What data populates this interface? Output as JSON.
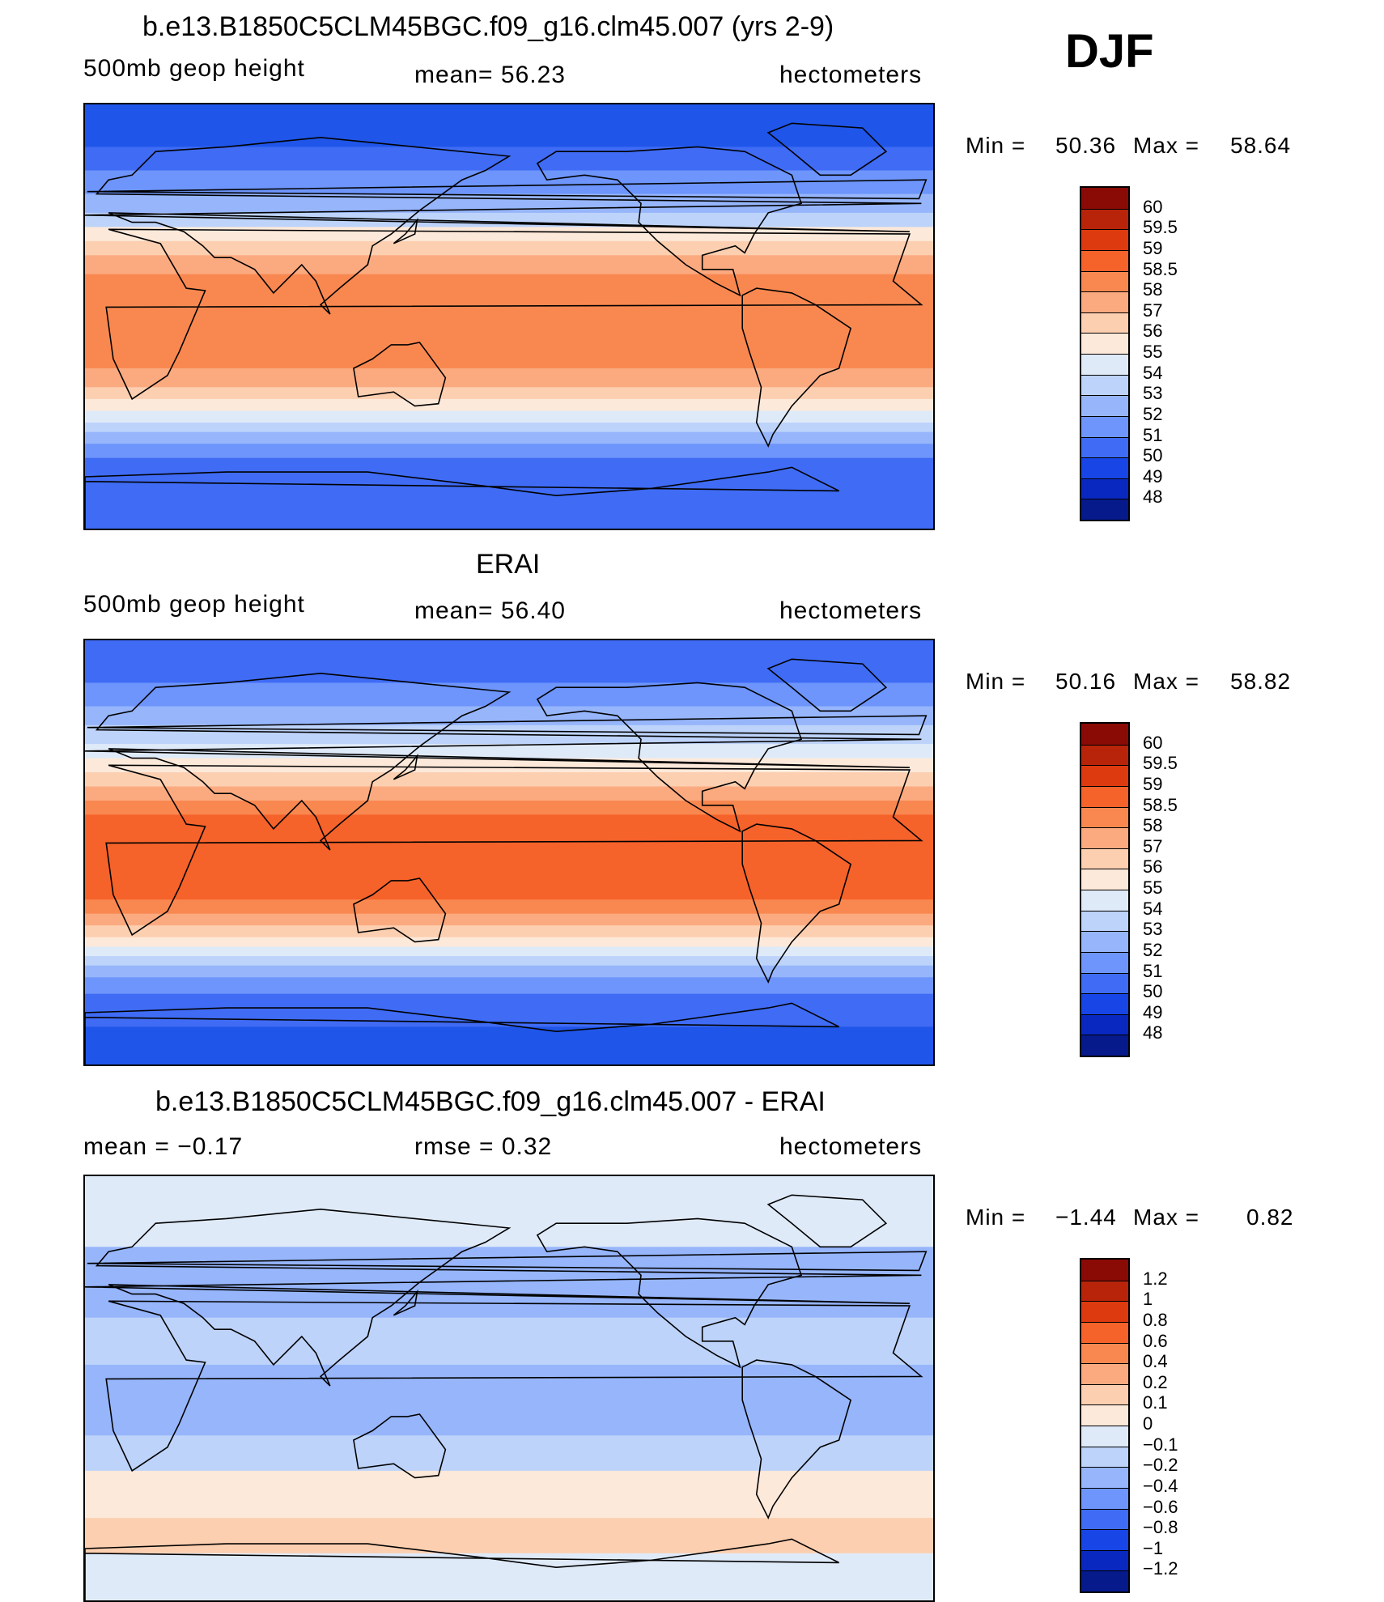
{
  "season": "DJF",
  "chart_data": [
    {
      "type": "heatmap",
      "title": "b.e13.B1850C5CLM45BGC.f09_g16.clm45.007 (yrs 2-9)",
      "left_label": "500mb geop height",
      "mean_text": "mean=  56.23",
      "units": "hectometers",
      "min_label": "Min =",
      "min_value": "50.36",
      "max_label": "Max =",
      "max_value": "58.64",
      "colorbar_levels": [
        "60",
        "59.5",
        "59",
        "58.5",
        "58",
        "57",
        "56",
        "55",
        "54",
        "53",
        "52",
        "51",
        "50",
        "49",
        "48"
      ],
      "colorbar_colors": [
        "#8a0a06",
        "#b8240a",
        "#de3a0f",
        "#f5622a",
        "#f98850",
        "#fbaa80",
        "#fccfb0",
        "#fde9da",
        "#dfeaf9",
        "#bdd3fa",
        "#96b5fb",
        "#6d95fb",
        "#3f6bf5",
        "#1745e6",
        "#0828c0",
        "#061a8c"
      ],
      "bands": [
        {
          "lat": 90,
          "color": "#1f55e8"
        },
        {
          "lat": 72,
          "color": "#3f6bf5"
        },
        {
          "lat": 62,
          "color": "#6d95fb"
        },
        {
          "lat": 52,
          "color": "#96b5fb"
        },
        {
          "lat": 44,
          "color": "#bdd3fa"
        },
        {
          "lat": 38,
          "color": "#fde9da"
        },
        {
          "lat": 32,
          "color": "#fccfb0"
        },
        {
          "lat": 26,
          "color": "#fbaa80"
        },
        {
          "lat": 18,
          "color": "#f98850"
        },
        {
          "lat": -22,
          "color": "#fbaa80"
        },
        {
          "lat": -30,
          "color": "#fccfb0"
        },
        {
          "lat": -35,
          "color": "#fde9da"
        },
        {
          "lat": -40,
          "color": "#dfeaf9"
        },
        {
          "lat": -45,
          "color": "#bdd3fa"
        },
        {
          "lat": -49,
          "color": "#96b5fb"
        },
        {
          "lat": -54,
          "color": "#6d95fb"
        },
        {
          "lat": -60,
          "color": "#3f6bf5"
        }
      ]
    },
    {
      "type": "heatmap",
      "title": "ERAI",
      "left_label": "500mb geop height",
      "mean_text": "mean=  56.40",
      "units": "hectometers",
      "min_label": "Min =",
      "min_value": "50.16",
      "max_label": "Max =",
      "max_value": "58.82",
      "colorbar_levels": [
        "60",
        "59.5",
        "59",
        "58.5",
        "58",
        "57",
        "56",
        "55",
        "54",
        "53",
        "52",
        "51",
        "50",
        "49",
        "48"
      ],
      "colorbar_colors": [
        "#8a0a06",
        "#b8240a",
        "#de3a0f",
        "#f5622a",
        "#f98850",
        "#fbaa80",
        "#fccfb0",
        "#fde9da",
        "#dfeaf9",
        "#bdd3fa",
        "#96b5fb",
        "#6d95fb",
        "#3f6bf5",
        "#1745e6",
        "#0828c0",
        "#061a8c"
      ],
      "bands": [
        {
          "lat": 90,
          "color": "#3f6bf5"
        },
        {
          "lat": 72,
          "color": "#6d95fb"
        },
        {
          "lat": 62,
          "color": "#96b5fb"
        },
        {
          "lat": 54,
          "color": "#bdd3fa"
        },
        {
          "lat": 46,
          "color": "#dfeaf9"
        },
        {
          "lat": 40,
          "color": "#fde9da"
        },
        {
          "lat": 34,
          "color": "#fccfb0"
        },
        {
          "lat": 28,
          "color": "#fbaa80"
        },
        {
          "lat": 22,
          "color": "#f98850"
        },
        {
          "lat": 16,
          "color": "#f5622a"
        },
        {
          "lat": -20,
          "color": "#f98850"
        },
        {
          "lat": -26,
          "color": "#fbaa80"
        },
        {
          "lat": -31,
          "color": "#fccfb0"
        },
        {
          "lat": -36,
          "color": "#fde9da"
        },
        {
          "lat": -40,
          "color": "#dfeaf9"
        },
        {
          "lat": -44,
          "color": "#bdd3fa"
        },
        {
          "lat": -48,
          "color": "#96b5fb"
        },
        {
          "lat": -53,
          "color": "#6d95fb"
        },
        {
          "lat": -60,
          "color": "#3f6bf5"
        },
        {
          "lat": -74,
          "color": "#1f55e8"
        }
      ]
    },
    {
      "type": "heatmap",
      "title": "b.e13.B1850C5CLM45BGC.f09_g16.clm45.007 - ERAI",
      "left_label": "mean =   −0.17",
      "mean_text": "rmse =    0.32",
      "units": "hectometers",
      "min_label": "Min =",
      "min_value": "−1.44",
      "max_label": "Max =",
      "max_value": "0.82",
      "colorbar_levels": [
        "1.2",
        "1",
        "0.8",
        "0.6",
        "0.4",
        "0.2",
        "0.1",
        "0",
        "−0.1",
        "−0.2",
        "−0.4",
        "−0.6",
        "−0.8",
        "−1",
        "−1.2"
      ],
      "colorbar_colors": [
        "#8a0a06",
        "#b8240a",
        "#de3a0f",
        "#f5622a",
        "#f98850",
        "#fbaa80",
        "#fccfb0",
        "#fde9da",
        "#dfeaf9",
        "#bdd3fa",
        "#96b5fb",
        "#6d95fb",
        "#3f6bf5",
        "#1745e6",
        "#0828c0",
        "#061a8c"
      ],
      "bands": [
        {
          "lat": 90,
          "color": "#dfeaf9"
        },
        {
          "lat": 60,
          "color": "#96b5fb"
        },
        {
          "lat": 30,
          "color": "#bdd3fa"
        },
        {
          "lat": 10,
          "color": "#96b5fb"
        },
        {
          "lat": -20,
          "color": "#bdd3fa"
        },
        {
          "lat": -35,
          "color": "#fde9da"
        },
        {
          "lat": -55,
          "color": "#fccfb0"
        },
        {
          "lat": -70,
          "color": "#dfeaf9"
        }
      ]
    }
  ]
}
